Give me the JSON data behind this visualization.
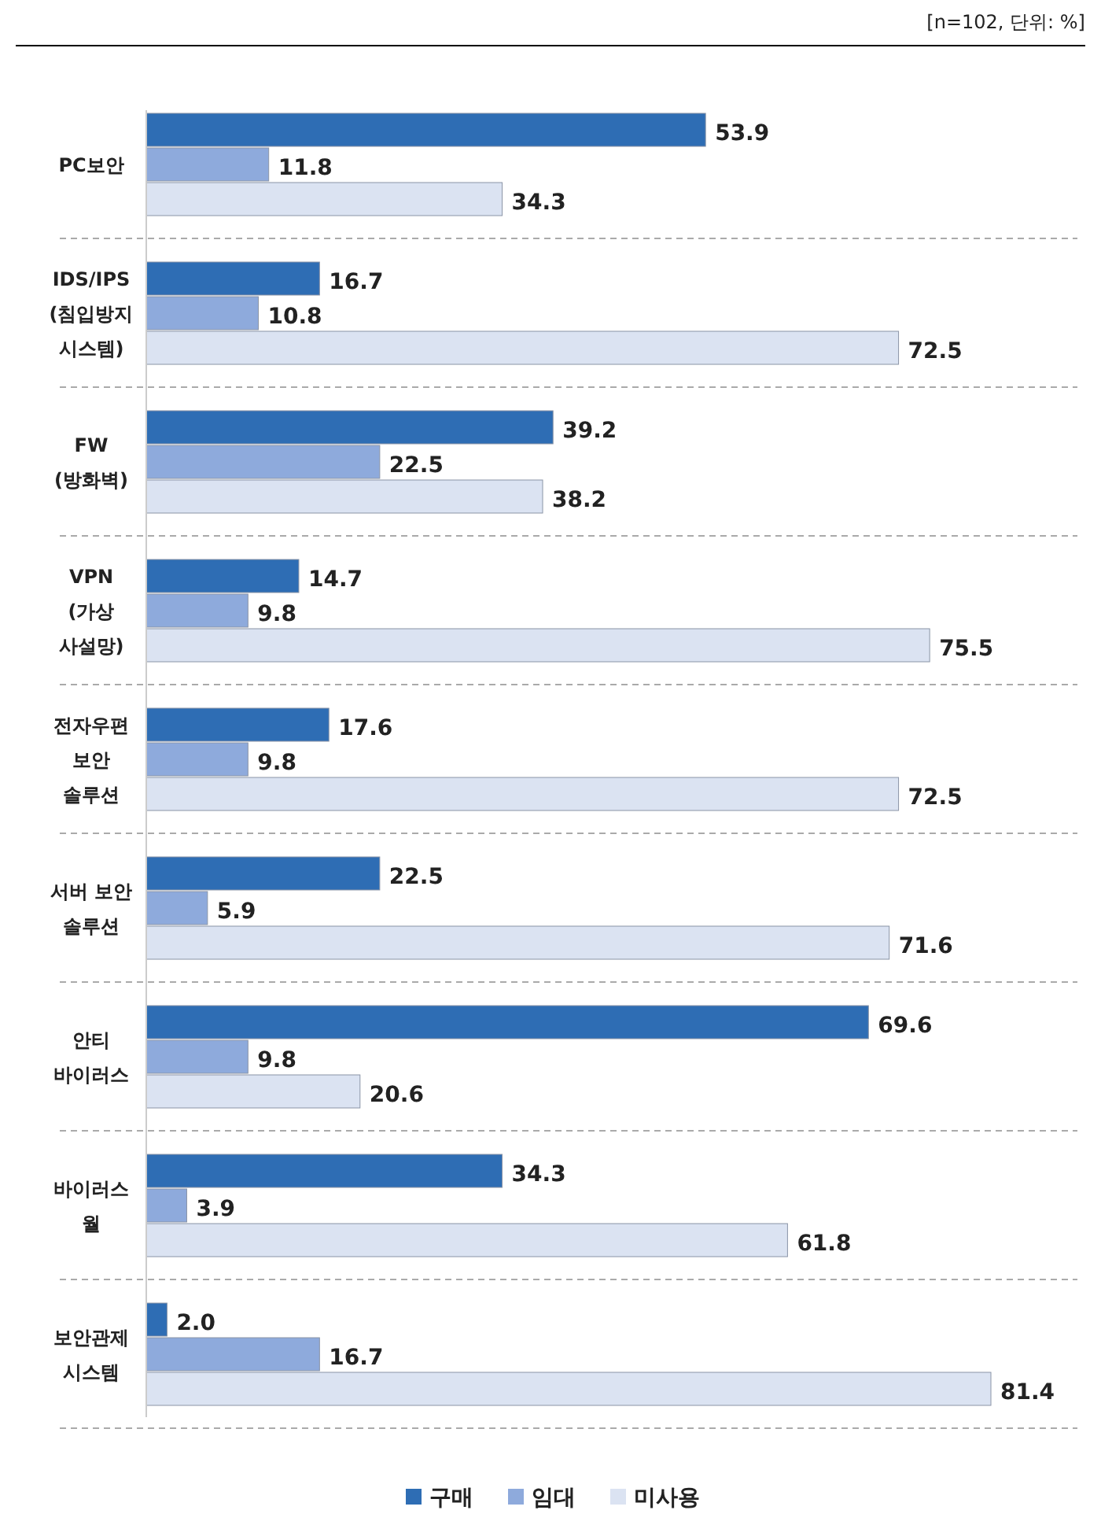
{
  "chart_data": {
    "type": "bar",
    "orientation": "horizontal",
    "legend": "bottom",
    "annotations": [
      "[n=102, 단위: %]"
    ],
    "categories": [
      "PC보안",
      "IDS/IPS\n(침입방지\n시스템)",
      "FW\n(방화벽)",
      "VPN\n(가상\n사설망)",
      "전자우편\n보안\n솔루션",
      "서버 보안\n솔루션",
      "안티\n바이러스",
      "바이러스\n월",
      "보안관제\n시스템"
    ],
    "series": [
      {
        "name": "구매",
        "color": "#2e6db4",
        "values": [
          53.9,
          16.7,
          39.2,
          14.7,
          17.6,
          22.5,
          69.6,
          34.3,
          2.0
        ],
        "value_labels": [
          "53.9",
          "16.7",
          "39.2",
          "14.7",
          "17.6",
          "22.5",
          "69.6",
          "34.3",
          "2.0"
        ]
      },
      {
        "name": "임대",
        "color": "#8eaadc",
        "values": [
          11.8,
          10.8,
          22.5,
          9.8,
          9.8,
          5.9,
          9.8,
          3.9,
          16.7
        ],
        "value_labels": [
          "11.8",
          "10.8",
          "22.5",
          "9.8",
          "9.8",
          "5.9",
          "9.8",
          "3.9",
          "16.7"
        ]
      },
      {
        "name": "미사용",
        "color": "#dbe3f2",
        "values": [
          34.3,
          72.5,
          38.2,
          75.5,
          72.5,
          71.6,
          20.6,
          61.8,
          81.4
        ],
        "value_labels": [
          "34.3",
          "72.5",
          "38.2",
          "75.5",
          "72.5",
          "71.6",
          "20.6",
          "61.8",
          "81.4"
        ]
      }
    ]
  }
}
